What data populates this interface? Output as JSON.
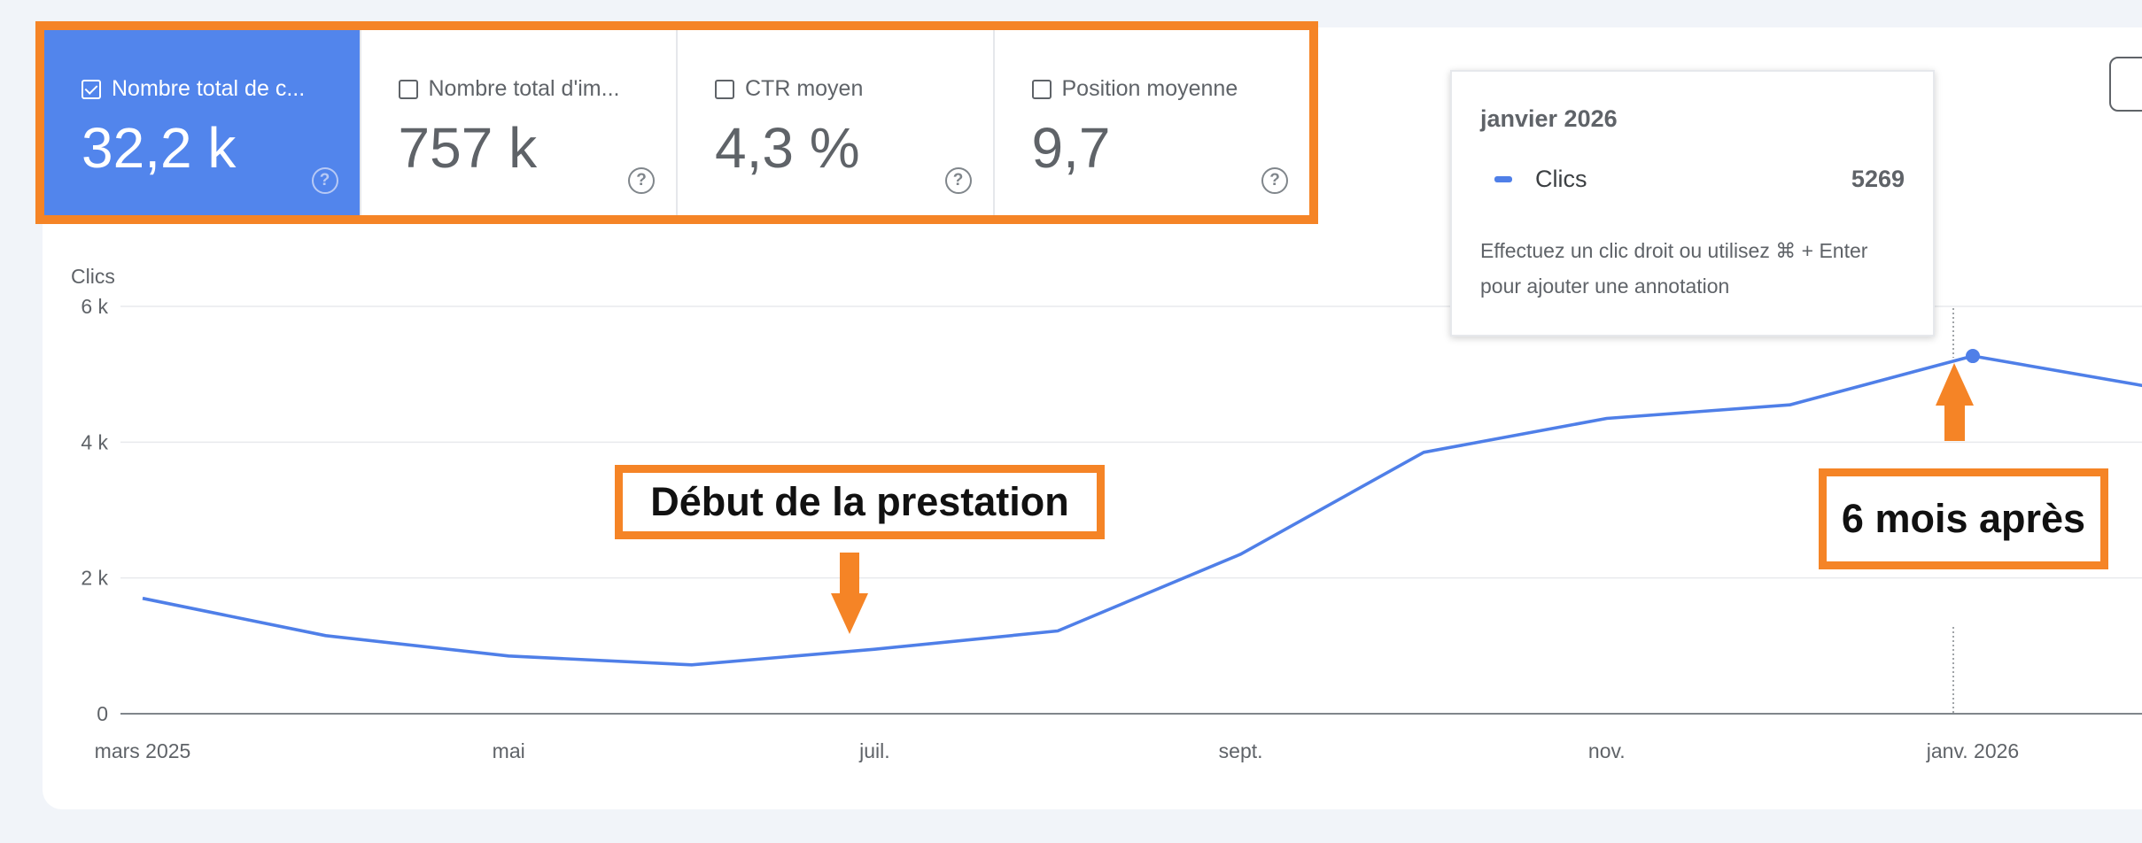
{
  "metrics": [
    {
      "label": "Nombre total de c...",
      "value": "32,2 k",
      "active": true
    },
    {
      "label": "Nombre total d'im...",
      "value": "757 k",
      "active": false
    },
    {
      "label": "CTR moyen",
      "value": "4,3 %",
      "active": false
    },
    {
      "label": "Position moyenne",
      "value": "9,7",
      "active": false
    }
  ],
  "tooltip": {
    "month": "janvier 2026",
    "series": "Clics",
    "value": "5269",
    "hint": "Effectuez un clic droit ou utilisez ⌘ + Enter pour ajouter une annotation"
  },
  "callouts": {
    "start": "Début de la prestation",
    "six_months": "6 mois après"
  },
  "colors": {
    "accent": "#f58426",
    "line": "#4f7fe8",
    "active_metric": "#5285ec"
  },
  "chart_data": {
    "type": "line",
    "ylabel": "Clics",
    "y_ticks": [
      "0",
      "2 k",
      "4 k",
      "6 k"
    ],
    "ylim": [
      0,
      6000
    ],
    "x_ticks": [
      "mars 2025",
      "mai",
      "juil.",
      "sept.",
      "nov.",
      "janv. 2026"
    ],
    "grid": true,
    "x": [
      "2025-03",
      "2025-04",
      "2025-05",
      "2025-06",
      "2025-07",
      "2025-08",
      "2025-09",
      "2025-10",
      "2025-11",
      "2025-12",
      "2026-01",
      "2026-02"
    ],
    "series": [
      {
        "name": "Clics",
        "values": [
          1700,
          1150,
          850,
          720,
          950,
          1220,
          2350,
          3850,
          4350,
          4550,
          5269,
          4800
        ]
      }
    ],
    "highlight": {
      "x": "2026-01",
      "value": 5269
    }
  }
}
